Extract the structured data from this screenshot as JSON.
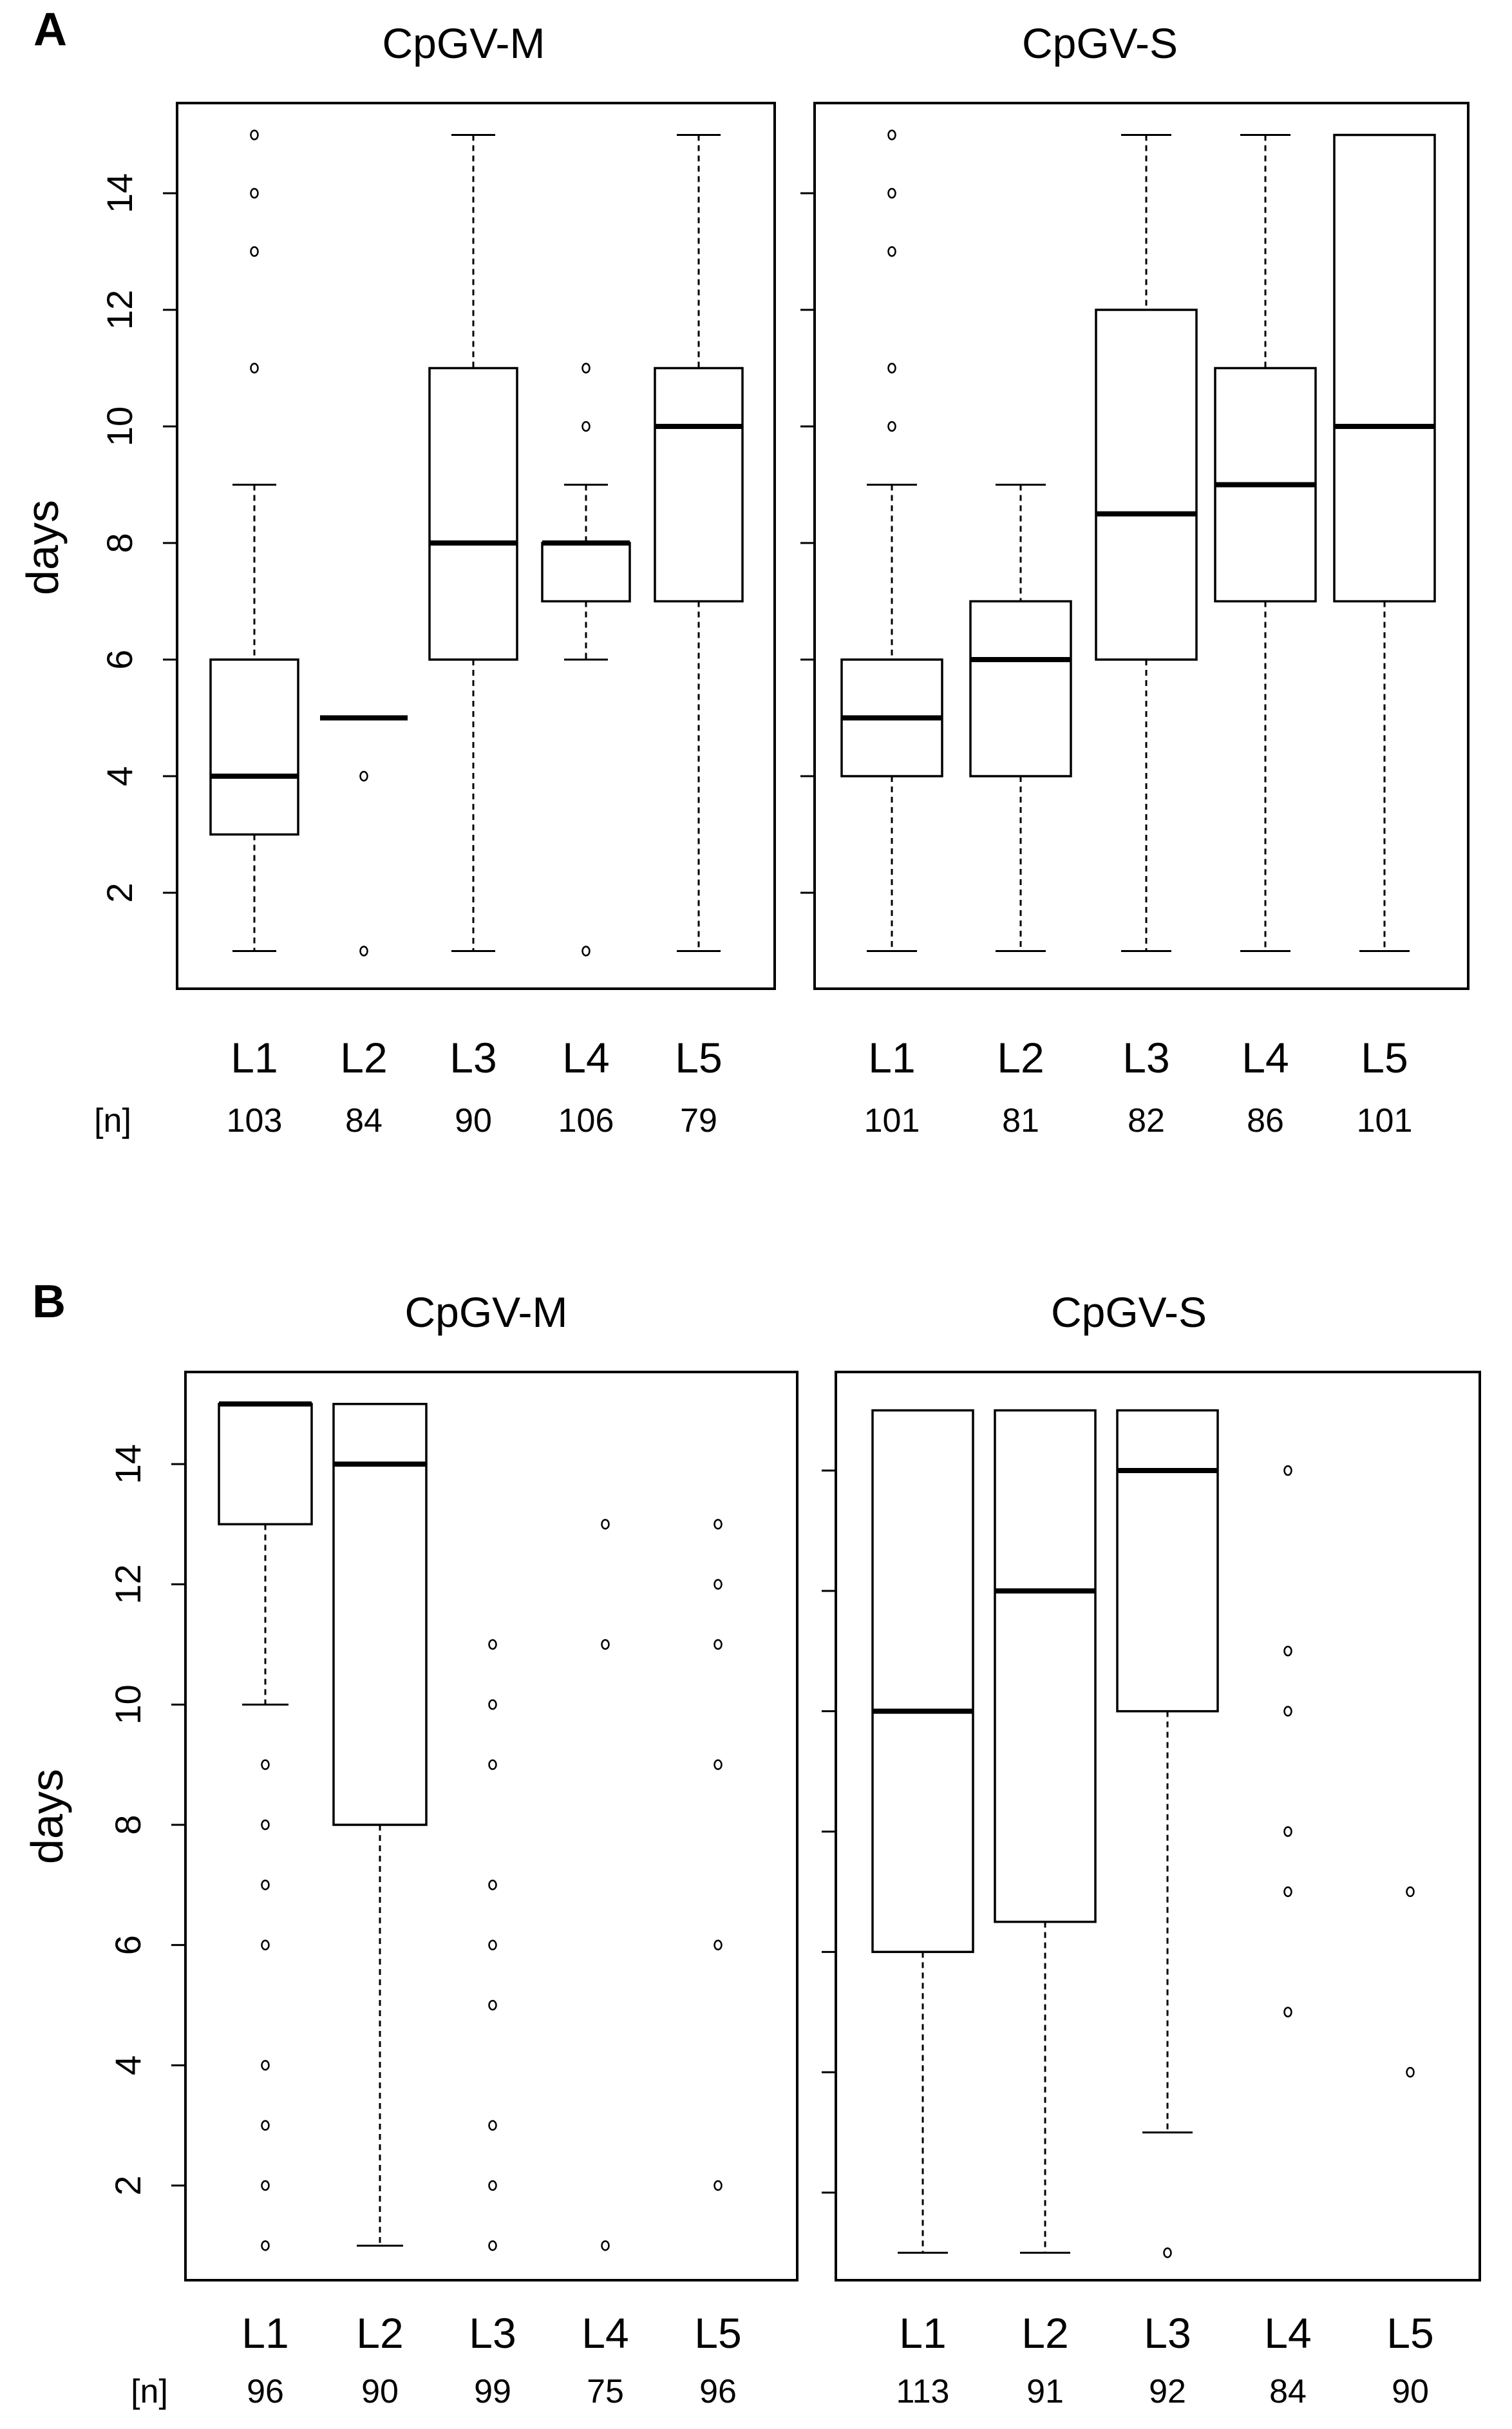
{
  "chart_data": [
    {
      "panel": "A",
      "title": "CpGV-M",
      "type": "boxplot",
      "ylabel": "days",
      "ylim": [
        0.4,
        15.5
      ],
      "yticks": [
        2,
        4,
        6,
        8,
        10,
        12,
        14
      ],
      "n_label": "[n]",
      "groups": [
        {
          "label": "L1",
          "n": "103",
          "min": 1,
          "q1": 3,
          "median": 4,
          "q3": 6,
          "max": 9,
          "outliers": [
            11,
            13,
            14,
            15
          ]
        },
        {
          "label": "L2",
          "n": "84",
          "min": 5,
          "q1": 5,
          "median": 5,
          "q3": 5,
          "max": 5,
          "outliers": [
            1,
            4
          ]
        },
        {
          "label": "L3",
          "n": "90",
          "min": 1,
          "q1": 6,
          "median": 8,
          "q3": 11,
          "max": 15,
          "outliers": []
        },
        {
          "label": "L4",
          "n": "106",
          "min": 6,
          "q1": 7,
          "median": 8,
          "q3": 8,
          "max": 9,
          "outliers": [
            1,
            10,
            11
          ]
        },
        {
          "label": "L5",
          "n": "79",
          "min": 1,
          "q1": 7,
          "median": 10,
          "q3": 11,
          "max": 15,
          "outliers": []
        }
      ]
    },
    {
      "panel": "A",
      "title": "CpGV-S",
      "type": "boxplot",
      "ylabel": "days",
      "ylim": [
        0.4,
        15.5
      ],
      "yticks": [
        2,
        4,
        6,
        8,
        10,
        12,
        14
      ],
      "n_label": "",
      "groups": [
        {
          "label": "L1",
          "n": "101",
          "min": 1,
          "q1": 4,
          "median": 5,
          "q3": 6,
          "max": 9,
          "outliers": [
            10,
            11,
            13,
            14,
            15
          ]
        },
        {
          "label": "L2",
          "n": "81",
          "min": 1,
          "q1": 4,
          "median": 6,
          "q3": 7,
          "max": 9,
          "outliers": []
        },
        {
          "label": "L3",
          "n": "82",
          "min": 1,
          "q1": 6,
          "median": 8.5,
          "q3": 12,
          "max": 15,
          "outliers": []
        },
        {
          "label": "L4",
          "n": "86",
          "min": 1,
          "q1": 7,
          "median": 9,
          "q3": 11,
          "max": 15,
          "outliers": []
        },
        {
          "label": "L5",
          "n": "101",
          "min": 1,
          "q1": 7,
          "median": 10,
          "q3": 15,
          "max": 15,
          "outliers": []
        }
      ]
    },
    {
      "panel": "B",
      "title": "CpGV-M",
      "type": "boxplot",
      "ylabel": "days",
      "ylim": [
        0.4,
        15.5
      ],
      "yticks": [
        2,
        4,
        6,
        8,
        10,
        12,
        14
      ],
      "n_label": "[n]",
      "groups": [
        {
          "label": "L1",
          "n": "96",
          "min": 10,
          "q1": 13,
          "median": 15,
          "q3": 15,
          "max": 15,
          "outliers": [
            1,
            2,
            3,
            4,
            6,
            7,
            8,
            9
          ]
        },
        {
          "label": "L2",
          "n": "90",
          "min": 1,
          "q1": 8,
          "median": 14,
          "q3": 15,
          "max": 15,
          "outliers": []
        },
        {
          "label": "L3",
          "n": "99",
          "min": null,
          "q1": null,
          "median": null,
          "q3": null,
          "max": null,
          "outliers": [
            1,
            2,
            3,
            5,
            6,
            7,
            9,
            10,
            11
          ]
        },
        {
          "label": "L4",
          "n": "75",
          "min": null,
          "q1": null,
          "median": null,
          "q3": null,
          "max": null,
          "outliers": [
            1,
            11,
            13
          ]
        },
        {
          "label": "L5",
          "n": "96",
          "min": null,
          "q1": null,
          "median": null,
          "q3": null,
          "max": null,
          "outliers": [
            2,
            6,
            9,
            11,
            12,
            13
          ]
        }
      ]
    },
    {
      "panel": "B",
      "title": "CpGV-S",
      "type": "boxplot",
      "ylabel": "days",
      "ylim": [
        0.4,
        15.5
      ],
      "yticks": [
        2,
        4,
        6,
        8,
        10,
        12,
        14
      ],
      "n_label": "",
      "groups": [
        {
          "label": "L1",
          "n": "113",
          "min": 1,
          "q1": 6,
          "median": 10,
          "q3": 15,
          "max": 15,
          "outliers": []
        },
        {
          "label": "L2",
          "n": "91",
          "min": 1,
          "q1": 6.5,
          "median": 12,
          "q3": 15,
          "max": 15,
          "outliers": []
        },
        {
          "label": "L3",
          "n": "92",
          "min": 3,
          "q1": 10,
          "median": 14,
          "q3": 15,
          "max": 15,
          "outliers": [
            1
          ]
        },
        {
          "label": "L4",
          "n": "84",
          "min": null,
          "q1": null,
          "median": null,
          "q3": null,
          "max": null,
          "outliers": [
            5,
            7,
            8,
            10,
            11,
            14
          ]
        },
        {
          "label": "L5",
          "n": "90",
          "min": null,
          "q1": null,
          "median": null,
          "q3": null,
          "max": null,
          "outliers": [
            4,
            7
          ]
        }
      ]
    }
  ],
  "panel_labels": {
    "a": "A",
    "b": "B"
  },
  "colors": {
    "line": "#000000",
    "background": "#ffffff"
  }
}
